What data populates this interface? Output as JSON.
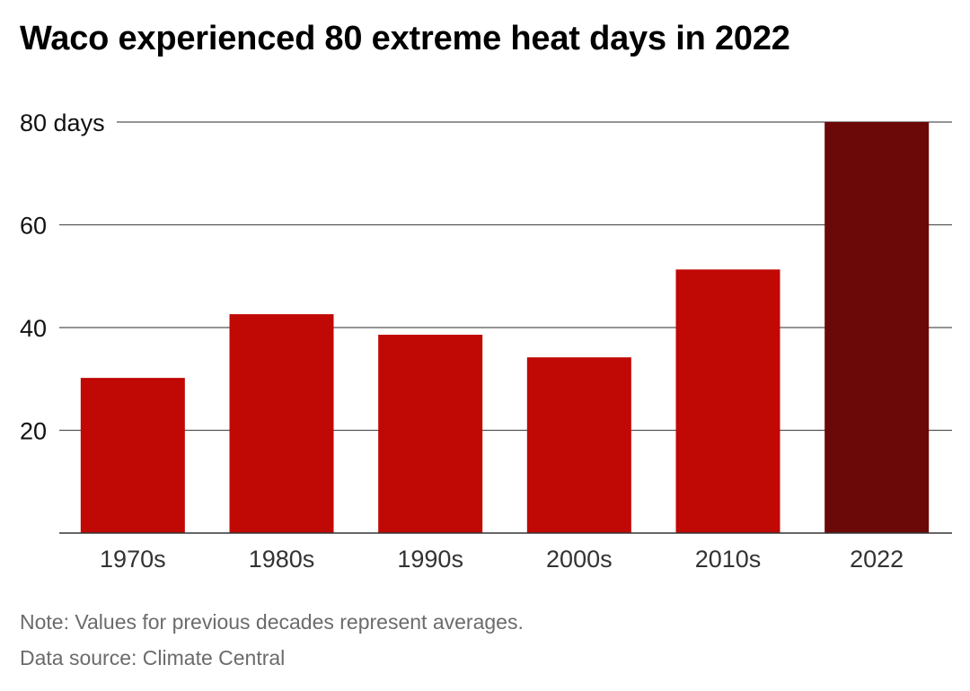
{
  "chart_data": {
    "type": "bar",
    "title": "Waco experienced 80 extreme heat days in 2022",
    "xlabel": "",
    "ylabel": "",
    "categories": [
      "1970s",
      "1980s",
      "1990s",
      "2000s",
      "2010s",
      "2022"
    ],
    "values": [
      30.2,
      42.6,
      38.6,
      34.2,
      51.3,
      80
    ],
    "ylim": [
      0,
      80
    ],
    "yticks": [
      {
        "value": 20,
        "label": "20"
      },
      {
        "value": 40,
        "label": "40"
      },
      {
        "value": 60,
        "label": "60"
      },
      {
        "value": 80,
        "label": "80 days"
      }
    ],
    "grid": true,
    "colors": {
      "bar": "#c00804",
      "highlight": "#6b0808",
      "grid": "#555555"
    },
    "highlight_category": "2022"
  },
  "footer": {
    "note": "Note: Values for previous decades represent averages.",
    "source": "Data source: Climate Central"
  }
}
